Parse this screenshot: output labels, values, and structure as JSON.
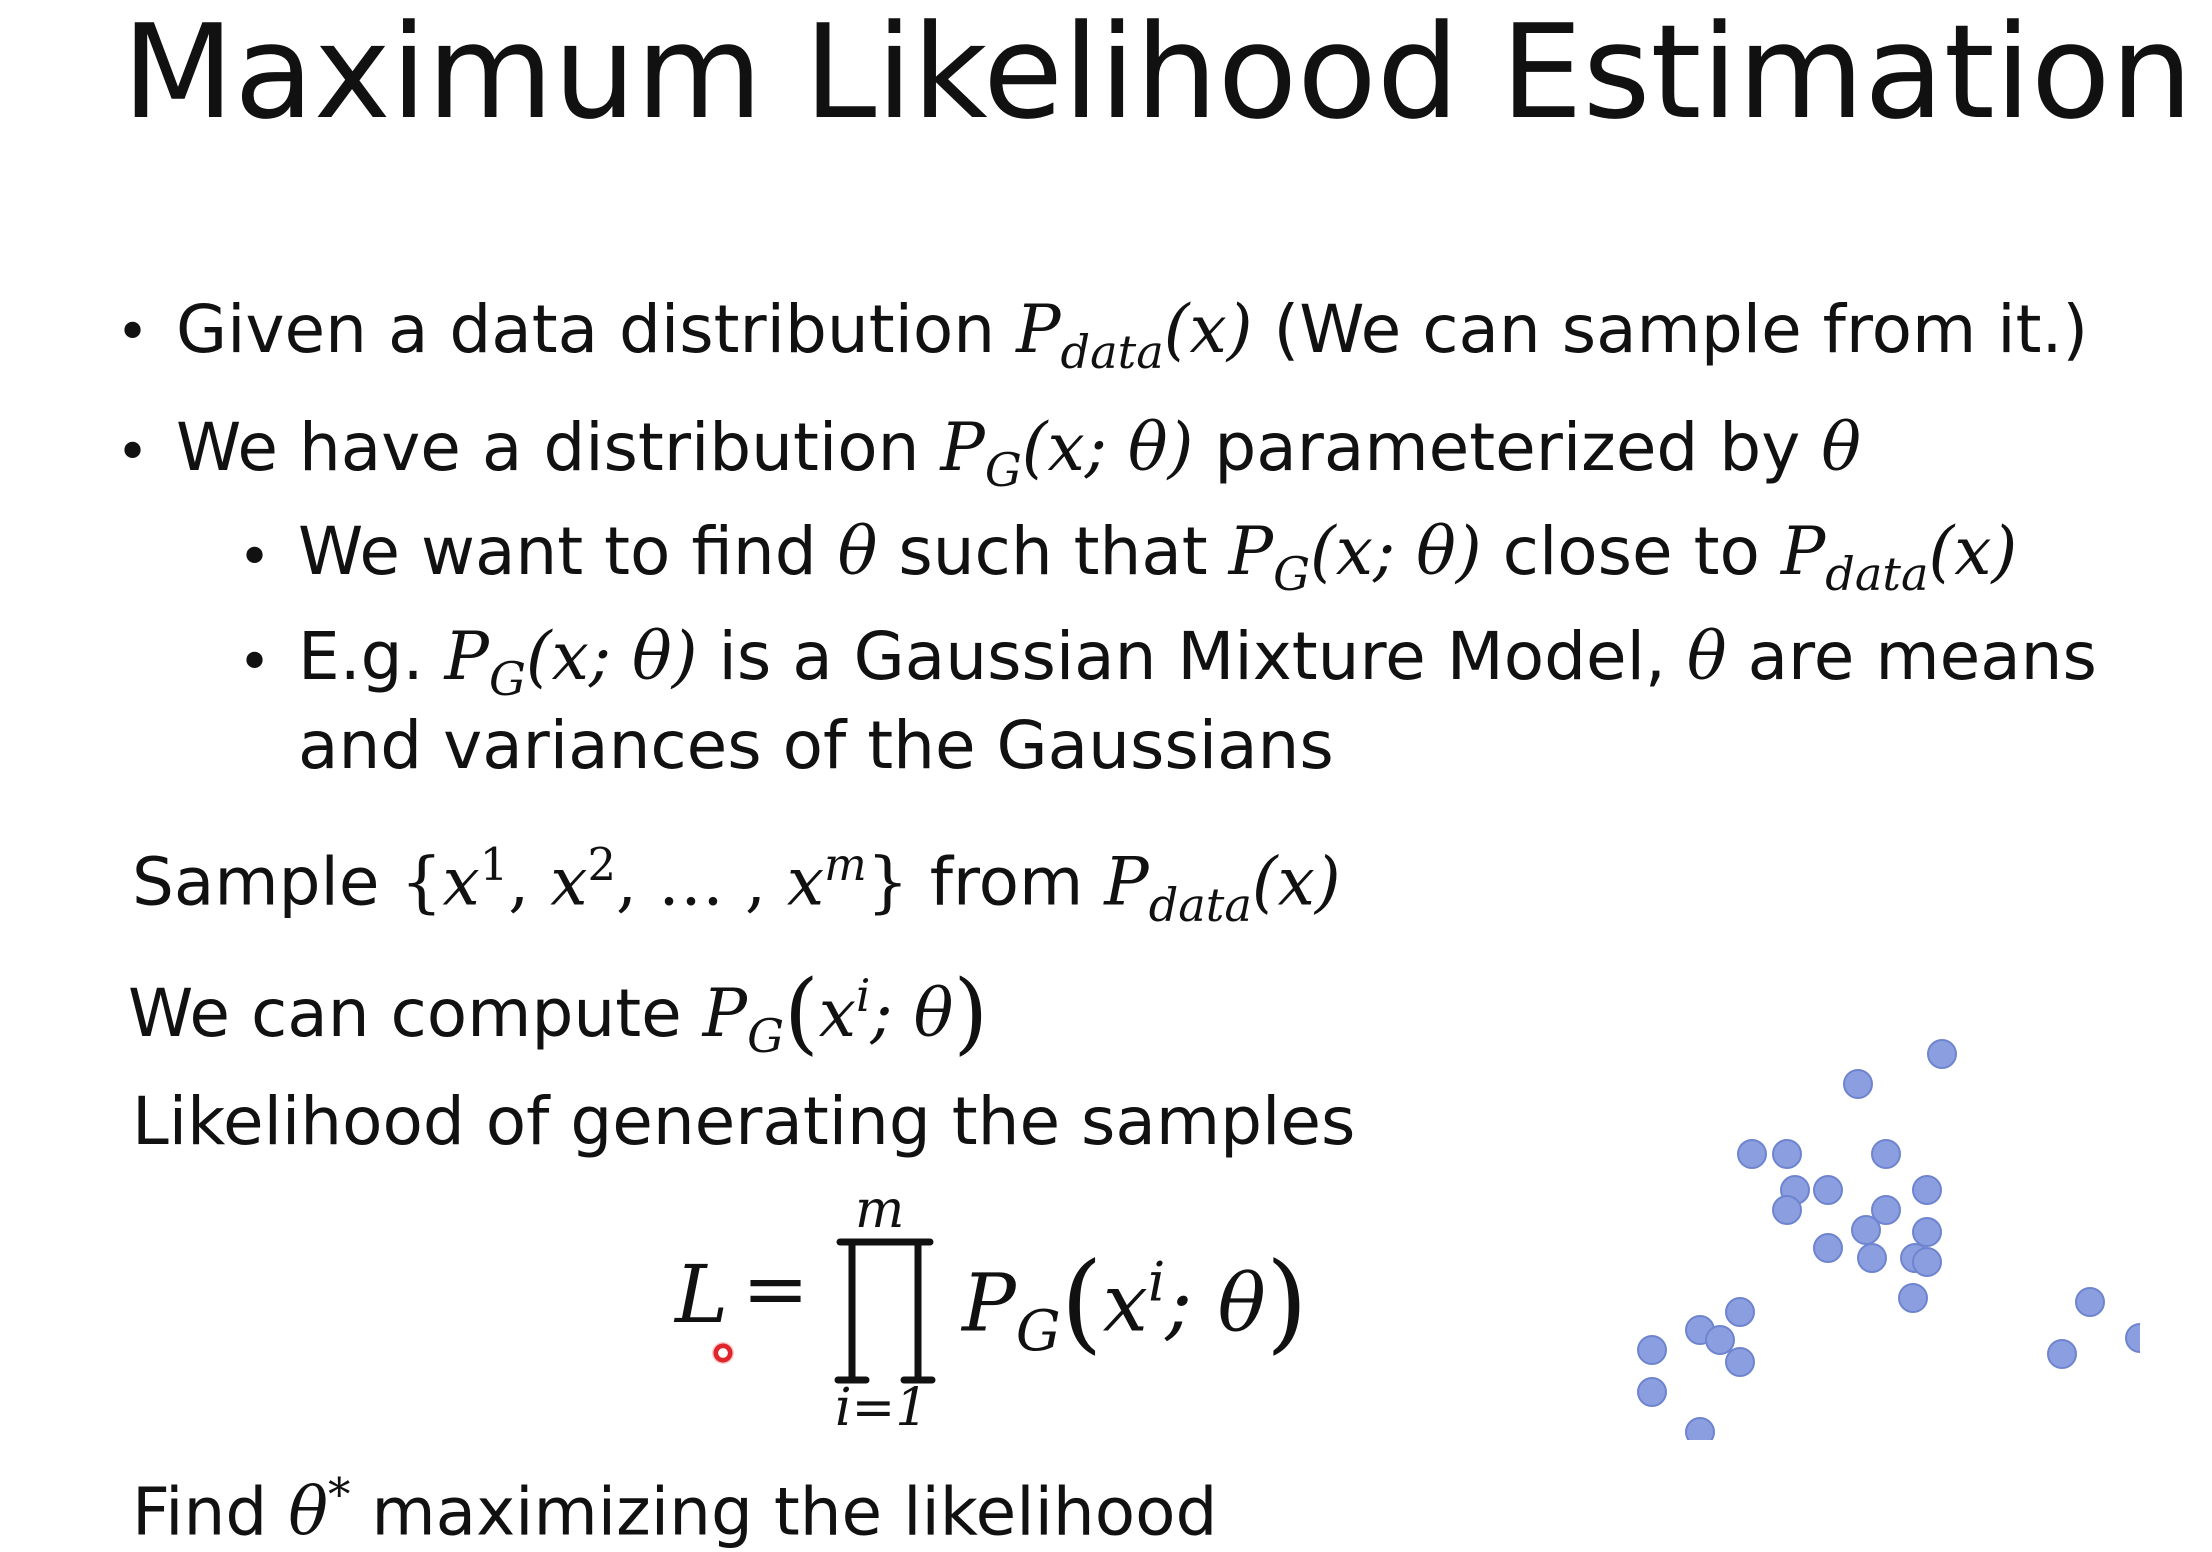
{
  "slide": {
    "title": "Maximum Likelihood Estimation",
    "bullet1": {
      "pre": "Given a data distribution ",
      "P": "P",
      "sub": "data",
      "arg": "(x)",
      "post": " (We can sample from it.)"
    },
    "bullet2": {
      "pre": "We have a distribution ",
      "P": "P",
      "sub": "G",
      "arg": "(x; θ)",
      "mid": " parameterized by ",
      "theta": "θ"
    },
    "sub1": {
      "pre": "We want to find ",
      "theta": "θ",
      "mid": " such that ",
      "P1": "P",
      "sub1": "G",
      "arg1": "(x; θ)",
      "mid2": " close to ",
      "P2": "P",
      "sub2": "data",
      "arg2": "(x)"
    },
    "sub2": {
      "pre": "E.g. ",
      "P": "P",
      "sub": "G",
      "arg": "(x; θ)",
      "mid": " is a Gaussian Mixture Model, ",
      "theta": "θ",
      "post": " are means",
      "line2": "and variances of the Gaussians"
    },
    "sample": {
      "pre": "Sample ",
      "set_open": "{",
      "x": "x",
      "s1": "1",
      "comma1": ", ",
      "x2": "x",
      "s2": "2",
      "dots": ", … , ",
      "x3": "x",
      "s3": "m",
      "set_close": "}",
      "mid": " from ",
      "P": "P",
      "sub": "data",
      "arg": "(x)"
    },
    "compute": {
      "pre": "We can compute ",
      "P": "P",
      "sub": "G",
      "open": "(",
      "x": "x",
      "sup": "i",
      "rest": "; θ",
      "close": ")"
    },
    "likelihood_label": "Likelihood of generating the samples",
    "equation": {
      "L": "L",
      "eq": "=",
      "upper": "m",
      "lower": "i=1",
      "P": "P",
      "sub": "G",
      "open": "(",
      "x": "x",
      "sup": "i",
      "rest": "; θ",
      "close": ")"
    },
    "find": {
      "pre": "Find ",
      "theta": "θ",
      "sup": "*",
      "post": " maximizing the likelihood"
    },
    "colors": {
      "dot_fill": "#8a9ee0",
      "dot_stroke": "#6f84cf",
      "text": "#111111",
      "cursor": "#e0262b"
    },
    "scatter_icon": "sample-points-illustration"
  }
}
